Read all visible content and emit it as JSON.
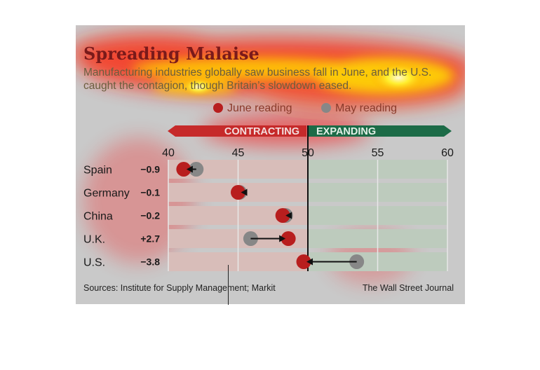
{
  "title": "Spreading Malaise",
  "subtitle": "Manufacturing industries globally saw business fall in June, and the U.S. caught the contagion, though Britain’s slowdown eased.",
  "legend": {
    "june": "June reading",
    "may": "May reading"
  },
  "direction_labels": {
    "left": "CONTRACTING",
    "right": "EXPANDING"
  },
  "source": "Sources: Institute for Supply Management; Markit",
  "credit": "The Wall Street Journal",
  "colors": {
    "june": "#b81e1e",
    "may": "#878787",
    "contracting": "#c62a2a",
    "expanding": "#1c6b47",
    "contracting_band": "#d8bdb9",
    "expanding_band": "#bdcbbd"
  },
  "chart_data": {
    "type": "dot",
    "title": "Spreading Malaise",
    "xlim": [
      40,
      60
    ],
    "xticks": [
      "40",
      "45",
      "50",
      "55",
      "60"
    ],
    "threshold": 50,
    "rows": [
      {
        "country": "Spain",
        "change": "−0.9",
        "june": 41.1,
        "may": 42.0
      },
      {
        "country": "Germany",
        "change": "−0.1",
        "june": 45.0,
        "may": 45.1
      },
      {
        "country": "China",
        "change": "−0.2",
        "june": 48.2,
        "may": 48.4
      },
      {
        "country": "U.K.",
        "change": "+2.7",
        "june": 48.6,
        "may": 45.9
      },
      {
        "country": "U.S.",
        "change": "−3.8",
        "june": 49.7,
        "may": 53.5
      }
    ],
    "legend_placement": "top-center"
  }
}
